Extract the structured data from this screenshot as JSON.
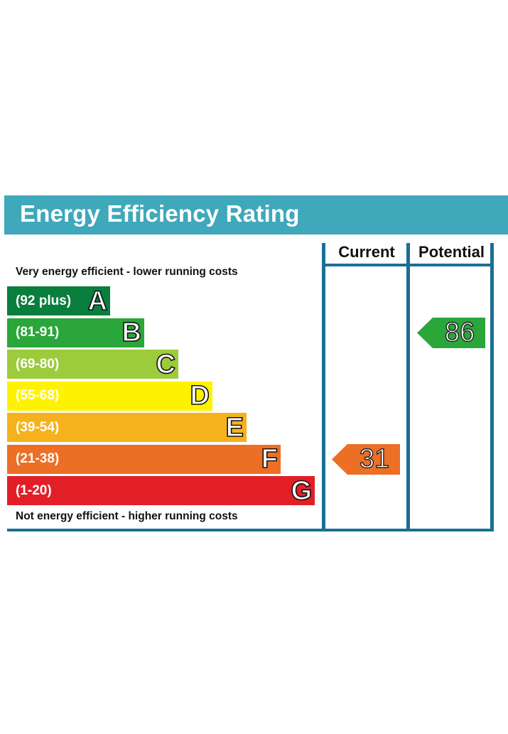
{
  "title": "Energy Efficiency Rating",
  "descriptions": {
    "top": "Very energy efficient - lower running costs",
    "bottom": "Not energy efficient - higher running costs"
  },
  "columns": {
    "current": "Current",
    "potential": "Potential"
  },
  "chart_data": {
    "type": "bar",
    "bands": [
      {
        "letter": "A",
        "range": "(92 plus)",
        "color": "#0a7e3c"
      },
      {
        "letter": "B",
        "range": "(81-91)",
        "color": "#2aa63a"
      },
      {
        "letter": "C",
        "range": "(69-80)",
        "color": "#9ccb3b"
      },
      {
        "letter": "D",
        "range": "(55-68)",
        "color": "#fff200"
      },
      {
        "letter": "E",
        "range": "(39-54)",
        "color": "#f6b21c"
      },
      {
        "letter": "F",
        "range": "(21-38)",
        "color": "#ec6f25"
      },
      {
        "letter": "G",
        "range": "(1-20)",
        "color": "#e21f26"
      }
    ],
    "current": {
      "value": "31",
      "band": "F",
      "color": "#ec6f25"
    },
    "potential": {
      "value": "86",
      "band": "B",
      "color": "#2aa63a"
    }
  }
}
